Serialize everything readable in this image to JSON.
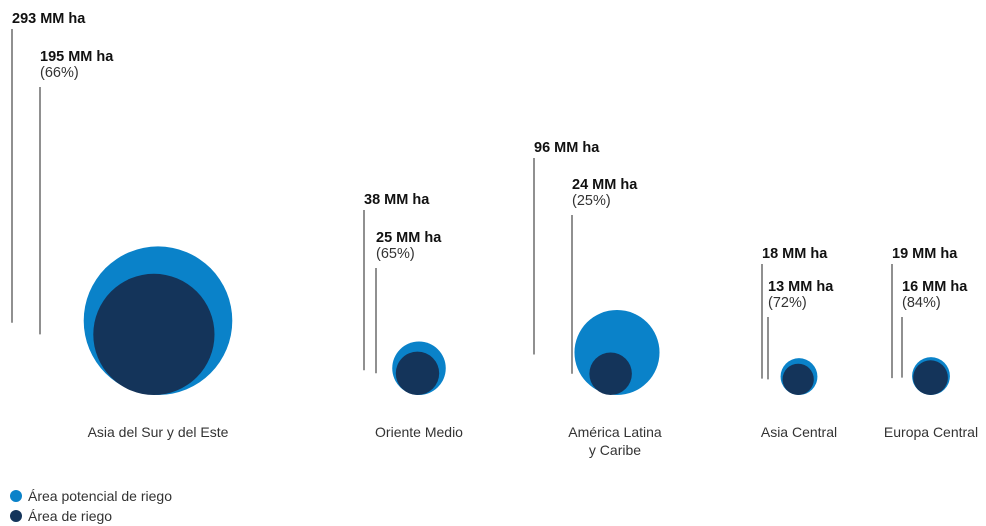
{
  "chart_data": {
    "type": "bubble",
    "unit": "MM ha",
    "colors": {
      "potential": "#0a82c9",
      "irrigated": "#14345a"
    },
    "regions": [
      {
        "name": "Asia del Sur y del Este",
        "name_lines": [
          "Asia del Sur y del Este"
        ],
        "potential": 293,
        "irrigated": 195,
        "pct": 66,
        "potential_label": "293 MM ha",
        "irrigated_label": "195 MM ha",
        "pct_label": "(66%)"
      },
      {
        "name": "Oriente Medio",
        "name_lines": [
          "Oriente Medio"
        ],
        "potential": 38,
        "irrigated": 25,
        "pct": 65,
        "potential_label": "38 MM ha",
        "irrigated_label": "25 MM ha",
        "pct_label": "(65%)"
      },
      {
        "name": "América Latina y Caribe",
        "name_lines": [
          "América Latina",
          "y Caribe"
        ],
        "potential": 96,
        "irrigated": 24,
        "pct": 25,
        "potential_label": "96 MM ha",
        "irrigated_label": "24 MM ha",
        "pct_label": "(25%)"
      },
      {
        "name": "Asia Central",
        "name_lines": [
          "Asia Central"
        ],
        "potential": 18,
        "irrigated": 13,
        "pct": 72,
        "potential_label": "18 MM ha",
        "irrigated_label": "13 MM ha",
        "pct_label": "(72%)"
      },
      {
        "name": "Europa Central",
        "name_lines": [
          "Europa Central"
        ],
        "potential": 19,
        "irrigated": 16,
        "pct": 84,
        "potential_label": "19 MM ha",
        "irrigated_label": "16 MM ha",
        "pct_label": "(84%)"
      }
    ],
    "legend": [
      {
        "key": "potential",
        "label": "Área potencial de riego",
        "color": "#0a82c9"
      },
      {
        "key": "irrigated",
        "label": "Área de riego",
        "color": "#14345a"
      }
    ]
  }
}
